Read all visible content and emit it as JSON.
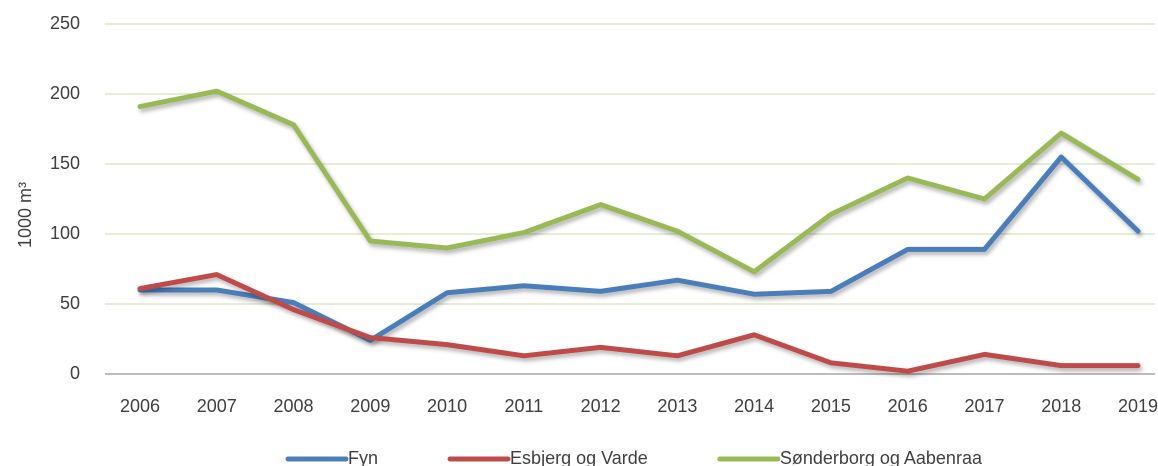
{
  "chart_data": {
    "type": "line",
    "y_label": "1000 m³",
    "categories": [
      "2006",
      "2007",
      "2008",
      "2009",
      "2010",
      "2011",
      "2012",
      "2013",
      "2014",
      "2015",
      "2016",
      "2017",
      "2018",
      "2019"
    ],
    "series": [
      {
        "name": "Fyn",
        "color": "#4a7ebb",
        "values": [
          60,
          60,
          51,
          24,
          58,
          63,
          59,
          67,
          57,
          59,
          89,
          89,
          155,
          102
        ]
      },
      {
        "name": "Esbjerg og Varde",
        "color": "#be4b48",
        "values": [
          61,
          71,
          46,
          26,
          21,
          13,
          19,
          13,
          28,
          8,
          2,
          14,
          6,
          6
        ]
      },
      {
        "name": "Sønderborg og Aabenraa",
        "color": "#98b954",
        "values": [
          191,
          202,
          178,
          95,
          90,
          101,
          121,
          102,
          73,
          114,
          140,
          125,
          172,
          139
        ]
      }
    ],
    "ylim": [
      0,
      250
    ],
    "yticks": [
      0,
      50,
      100,
      150,
      200,
      250
    ],
    "grid": true,
    "legend": "bottom"
  }
}
